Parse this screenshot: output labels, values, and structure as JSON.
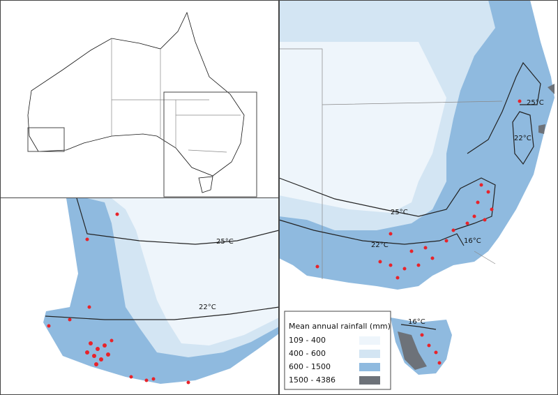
{
  "legend": {
    "title": "Mean annual rainfall (mm)",
    "items": [
      {
        "label": "109 - 400",
        "color": "#eef5fb"
      },
      {
        "label": "400 - 600",
        "color": "#d3e5f3"
      },
      {
        "label": "600 - 1500",
        "color": "#8fbadf"
      },
      {
        "label": "1500 - 4386",
        "color": "#6d7279"
      }
    ]
  },
  "southwest_panel": {
    "isotherms": [
      "25°C",
      "22°C"
    ]
  },
  "southeast_panel": {
    "isotherms": [
      "25°C",
      "22°C",
      "25°C",
      "22°C",
      "16°C",
      "16°C"
    ]
  }
}
